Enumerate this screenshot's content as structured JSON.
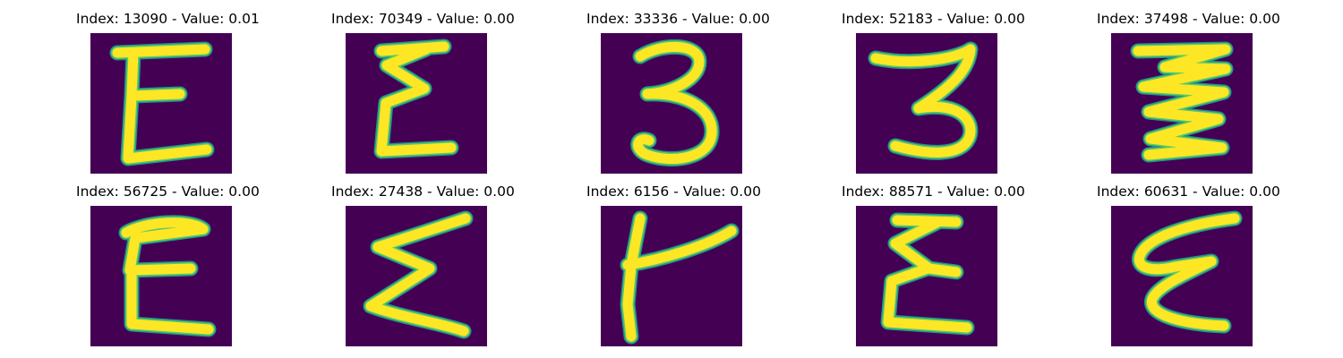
{
  "grid": {
    "panels": [
      {
        "title": "Index: 13090 - Value: 0.01",
        "glyph": "E"
      },
      {
        "title": "Index: 70349 - Value: 0.00",
        "glyph": "E-variant"
      },
      {
        "title": "Index: 33336 - Value: 0.00",
        "glyph": "3"
      },
      {
        "title": "Index: 52183 - Value: 0.00",
        "glyph": "3"
      },
      {
        "title": "Index: 37498 - Value: 0.00",
        "glyph": "zigzag-E"
      },
      {
        "title": "Index: 56725 - Value: 0.00",
        "glyph": "E"
      },
      {
        "title": "Index: 27438 - Value: 0.00",
        "glyph": "sigma"
      },
      {
        "title": "Index: 6156 - Value: 0.00",
        "glyph": "t-shape"
      },
      {
        "title": "Index: 88571 - Value: 0.00",
        "glyph": "E"
      },
      {
        "title": "Index: 60631 - Value: 0.00",
        "glyph": "curly-E"
      }
    ]
  },
  "colors": {
    "background": "#440154",
    "stroke_core": "#fde725",
    "stroke_edge": "#21918c",
    "title_text": "#000000"
  }
}
